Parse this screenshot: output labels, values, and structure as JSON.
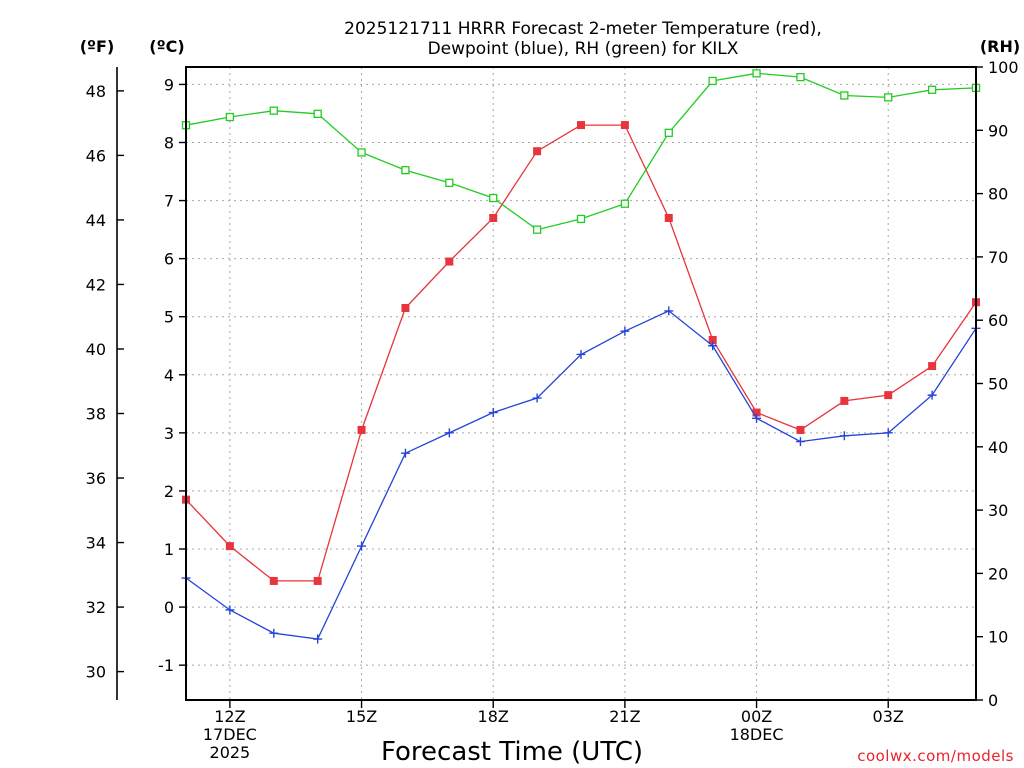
{
  "chart_data": {
    "type": "line",
    "title": [
      "2025121711 HRRR Forecast 2-meter Temperature (red),",
      "Dewpoint (blue), RH (green) for KILX"
    ],
    "xlabel": "Forecast Time (UTC)",
    "y_units": {
      "fahrenheit": "(ºF)",
      "celsius": "(ºC)",
      "rh": "(RH)"
    },
    "credit": "coolwx.com/models",
    "x_hours": [
      11,
      12,
      13,
      14,
      15,
      16,
      17,
      18,
      19,
      20,
      21,
      22,
      23,
      24,
      25,
      26,
      27,
      28,
      29
    ],
    "x_ticks": [
      {
        "hour": 12,
        "lines": [
          "12Z",
          "17DEC",
          "2025"
        ]
      },
      {
        "hour": 15,
        "lines": [
          "15Z"
        ]
      },
      {
        "hour": 18,
        "lines": [
          "18Z"
        ]
      },
      {
        "hour": 21,
        "lines": [
          "21Z"
        ]
      },
      {
        "hour": 24,
        "lines": [
          "00Z",
          "18DEC"
        ]
      },
      {
        "hour": 27,
        "lines": [
          "03Z"
        ]
      }
    ],
    "xlim": [
      11,
      29
    ],
    "celsius_axis": {
      "range": [
        -1.6,
        9.3
      ],
      "ticks": [
        -1,
        0,
        1,
        2,
        3,
        4,
        5,
        6,
        7,
        8,
        9
      ]
    },
    "fahrenheit_axis": {
      "ticks": [
        30,
        32,
        34,
        36,
        38,
        40,
        42,
        44,
        46,
        48
      ]
    },
    "rh_axis": {
      "range": [
        0,
        100
      ],
      "ticks": [
        0,
        10,
        20,
        30,
        40,
        50,
        60,
        70,
        80,
        90,
        100
      ]
    },
    "series": [
      {
        "name": "Temperature",
        "units": "celsius",
        "color": "#e8343c",
        "marker": "filled-square",
        "values": [
          1.85,
          1.05,
          0.45,
          0.45,
          3.05,
          5.15,
          5.95,
          6.7,
          7.85,
          8.3,
          8.3,
          6.7,
          4.6,
          3.35,
          3.05,
          3.55,
          3.65,
          4.15,
          5.25
        ]
      },
      {
        "name": "Dewpoint",
        "units": "celsius",
        "color": "#2443d8",
        "marker": "plus",
        "values": [
          0.5,
          -0.05,
          -0.45,
          -0.55,
          1.05,
          2.65,
          3.0,
          3.35,
          3.6,
          4.35,
          4.75,
          5.1,
          4.5,
          3.25,
          2.85,
          2.95,
          3.0,
          3.65,
          4.8
        ]
      },
      {
        "name": "RH",
        "units": "rh",
        "color": "#22cc22",
        "marker": "open-square",
        "values": [
          90.8,
          92.1,
          93.1,
          92.6,
          86.5,
          83.7,
          81.7,
          79.3,
          74.3,
          76.0,
          78.4,
          89.6,
          97.8,
          99.0,
          98.4,
          95.5,
          95.2,
          96.4,
          96.7
        ]
      }
    ]
  }
}
